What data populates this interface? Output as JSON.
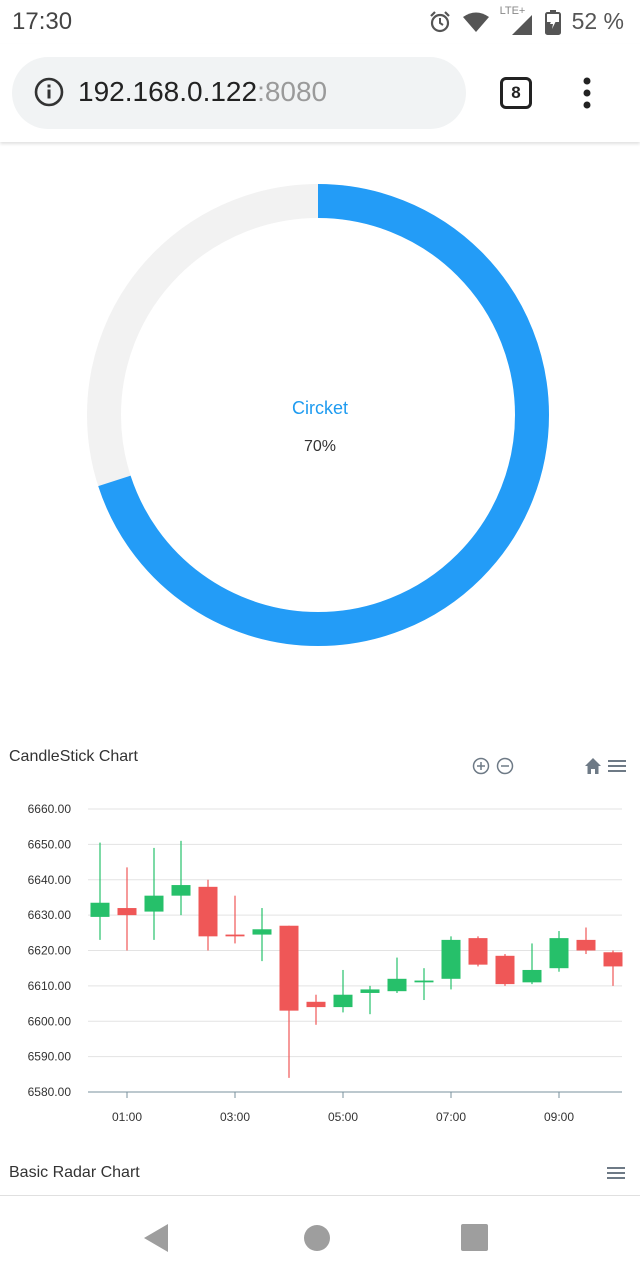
{
  "status_bar": {
    "time": "17:30",
    "network": "LTE+",
    "battery": "52 %"
  },
  "browser": {
    "url_host": "192.168.0.122",
    "url_port": ":8080",
    "tab_count": "8"
  },
  "donut": {
    "label": "Circket",
    "value_text": "70%",
    "percent": 70,
    "color": "#239cf7",
    "track_color": "#f2f2f2"
  },
  "candlestick": {
    "title": "CandleStick Chart",
    "chart_data": {
      "type": "candlestick",
      "ylim": [
        6580,
        6660
      ],
      "y_ticks": [
        "6660.00",
        "6650.00",
        "6640.00",
        "6630.00",
        "6620.00",
        "6610.00",
        "6600.00",
        "6590.00",
        "6580.00"
      ],
      "x_ticks": [
        "01:00",
        "03:00",
        "05:00",
        "07:00",
        "09:00"
      ],
      "up_color": "#26c06a",
      "down_color": "#ef5757",
      "candles": [
        {
          "t": 0.5,
          "o": 6629.5,
          "h": 6650.5,
          "l": 6623.0,
          "c": 6633.5
        },
        {
          "t": 1.0,
          "o": 6632.0,
          "h": 6643.5,
          "l": 6620.0,
          "c": 6630.0
        },
        {
          "t": 1.5,
          "o": 6631.0,
          "h": 6649.0,
          "l": 6623.0,
          "c": 6635.5
        },
        {
          "t": 2.0,
          "o": 6635.5,
          "h": 6651.0,
          "l": 6630.0,
          "c": 6638.5
        },
        {
          "t": 2.5,
          "o": 6638.0,
          "h": 6640.0,
          "l": 6620.0,
          "c": 6624.0
        },
        {
          "t": 3.0,
          "o": 6624.5,
          "h": 6635.5,
          "l": 6622.0,
          "c": 6624.0
        },
        {
          "t": 3.5,
          "o": 6624.5,
          "h": 6632.0,
          "l": 6617.0,
          "c": 6626.0
        },
        {
          "t": 4.0,
          "o": 6627.0,
          "h": 6627.0,
          "l": 6584.0,
          "c": 6603.0
        },
        {
          "t": 4.5,
          "o": 6605.5,
          "h": 6607.5,
          "l": 6599.0,
          "c": 6604.0
        },
        {
          "t": 5.0,
          "o": 6604.0,
          "h": 6614.5,
          "l": 6602.5,
          "c": 6607.5
        },
        {
          "t": 5.5,
          "o": 6608.0,
          "h": 6610.0,
          "l": 6602.0,
          "c": 6609.0
        },
        {
          "t": 6.0,
          "o": 6608.5,
          "h": 6618.0,
          "l": 6608.0,
          "c": 6612.0
        },
        {
          "t": 6.5,
          "o": 6611.0,
          "h": 6615.0,
          "l": 6606.0,
          "c": 6611.5
        },
        {
          "t": 7.0,
          "o": 6612.0,
          "h": 6624.0,
          "l": 6609.0,
          "c": 6623.0
        },
        {
          "t": 7.5,
          "o": 6623.5,
          "h": 6624.0,
          "l": 6615.5,
          "c": 6616.0
        },
        {
          "t": 8.0,
          "o": 6618.5,
          "h": 6619.0,
          "l": 6610.0,
          "c": 6610.5
        },
        {
          "t": 8.5,
          "o": 6611.0,
          "h": 6622.0,
          "l": 6610.5,
          "c": 6614.5
        },
        {
          "t": 9.0,
          "o": 6615.0,
          "h": 6625.5,
          "l": 6614.0,
          "c": 6623.5
        },
        {
          "t": 9.5,
          "o": 6623.0,
          "h": 6626.5,
          "l": 6619.0,
          "c": 6620.0
        },
        {
          "t": 10.0,
          "o": 6619.5,
          "h": 6620.0,
          "l": 6610.0,
          "c": 6615.5
        }
      ]
    }
  },
  "radar": {
    "title": "Basic Radar Chart"
  }
}
